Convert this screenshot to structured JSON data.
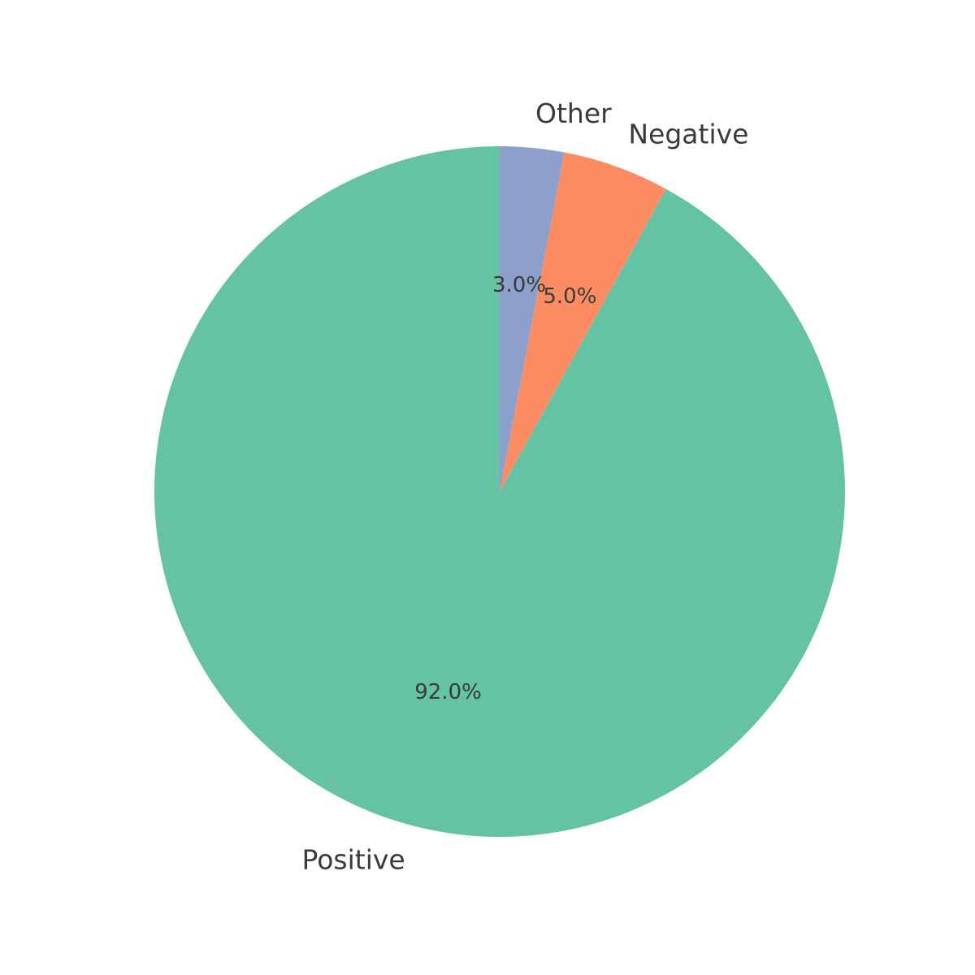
{
  "chart_data": {
    "type": "pie",
    "slices": [
      {
        "label": "Positive",
        "value": 92,
        "pct_label": "92.0%",
        "color": "#66c2a5"
      },
      {
        "label": "Negative",
        "value": 5,
        "pct_label": "5.0%",
        "color": "#fc8d62"
      },
      {
        "label": "Other",
        "value": 3,
        "pct_label": "3.0%",
        "color": "#8da0cb"
      }
    ],
    "layout": {
      "start_angle": 90,
      "counterclockwise": true,
      "label_distance": 1.1,
      "pct_distance": 0.6,
      "legend": "none",
      "grid": "off"
    },
    "colors": {
      "text": "#3a3a3a",
      "background": "#ffffff"
    }
  }
}
